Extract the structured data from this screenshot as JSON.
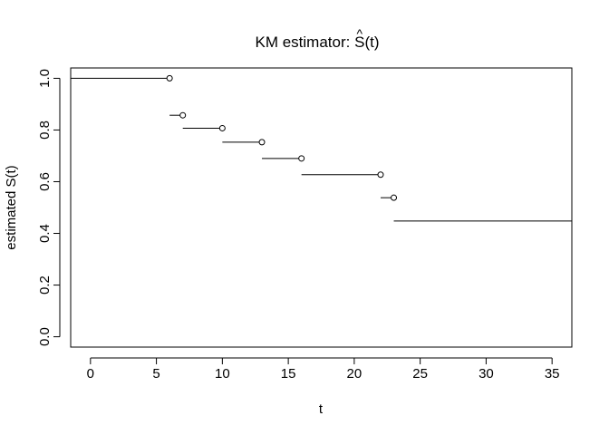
{
  "chart_data": {
    "type": "line",
    "title": "KM estimator: ",
    "title_math": {
      "symbol": "S",
      "hat": "^",
      "arg": "(t)"
    },
    "xlabel": "t",
    "ylabel": "estimated S(t)",
    "xlim": [
      -1.5,
      36.5
    ],
    "ylim": [
      -0.04,
      1.04
    ],
    "xticks": [
      0,
      5,
      10,
      15,
      20,
      25,
      30,
      35
    ],
    "yticks": [
      0.0,
      0.2,
      0.4,
      0.6,
      0.8,
      1.0
    ],
    "xtick_labels": [
      "0",
      "5",
      "10",
      "15",
      "20",
      "25",
      "30",
      "35"
    ],
    "ytick_labels": [
      "0.0",
      "0.2",
      "0.4",
      "0.6",
      "0.8",
      "1.0"
    ],
    "grid": false,
    "series": [
      {
        "segments": [
          {
            "x0": -1.5,
            "x1": 6,
            "y": 1.0
          },
          {
            "x0": 6,
            "x1": 7,
            "y": 0.857
          },
          {
            "x0": 7,
            "x1": 10,
            "y": 0.807
          },
          {
            "x0": 10,
            "x1": 13,
            "y": 0.753
          },
          {
            "x0": 13,
            "x1": 16,
            "y": 0.69
          },
          {
            "x0": 16,
            "x1": 22,
            "y": 0.627
          },
          {
            "x0": 22,
            "x1": 23,
            "y": 0.538
          },
          {
            "x0": 23,
            "x1": 36.5,
            "y": 0.448
          }
        ],
        "points": [
          {
            "x": 6,
            "y": 1.0
          },
          {
            "x": 7,
            "y": 0.857
          },
          {
            "x": 10,
            "y": 0.807
          },
          {
            "x": 13,
            "y": 0.753
          },
          {
            "x": 16,
            "y": 0.69
          },
          {
            "x": 22,
            "y": 0.627
          },
          {
            "x": 23,
            "y": 0.538
          }
        ]
      }
    ]
  }
}
